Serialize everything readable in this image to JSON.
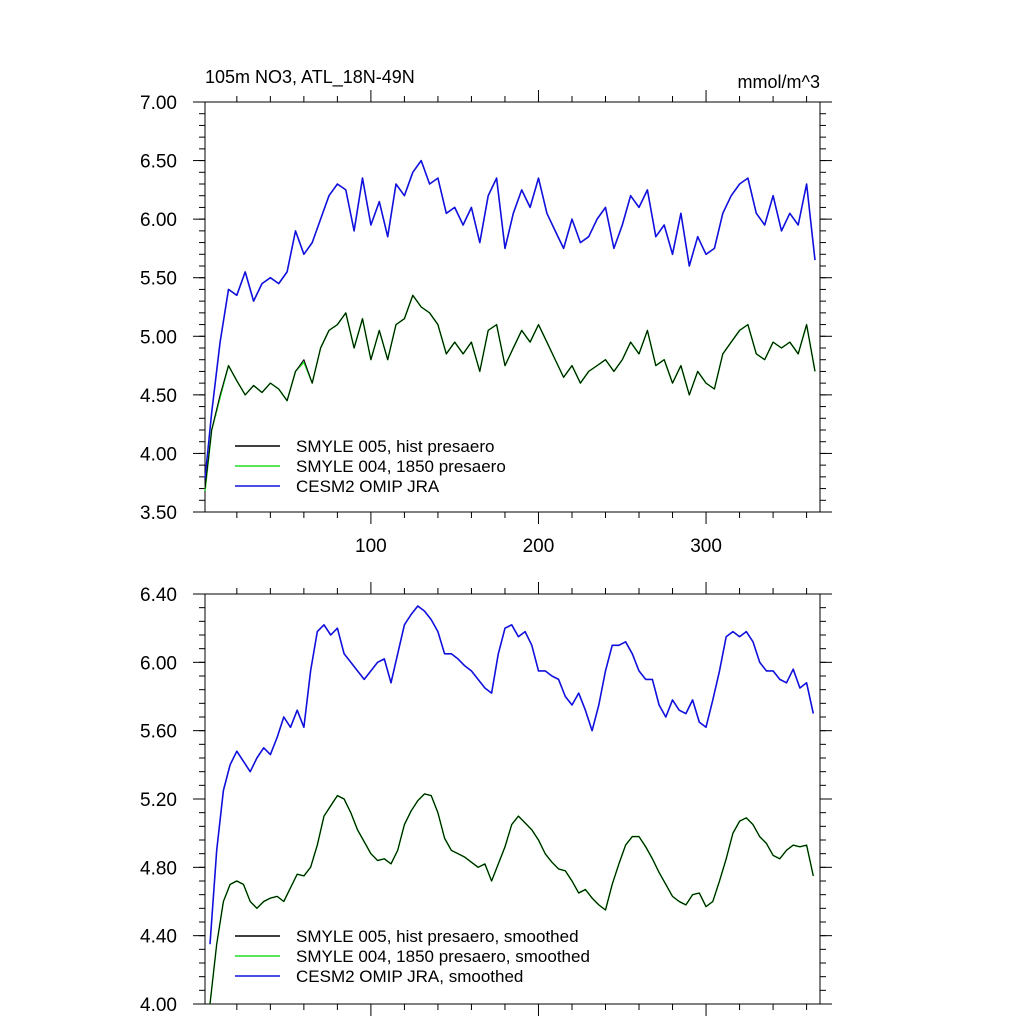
{
  "chart_data": [
    {
      "type": "line",
      "title": "105m NO3, ATL_18N-49N",
      "units": "mmol/m^3",
      "xlabel": "",
      "ylabel": "",
      "xlim": [
        1,
        368
      ],
      "ylim": [
        3.5,
        7.0
      ],
      "x_ticks": [
        "100",
        "200",
        "300"
      ],
      "y_ticks": [
        "3.50",
        "4.00",
        "4.50",
        "5.00",
        "5.50",
        "6.00",
        "6.50",
        "7.00"
      ],
      "legend_position": "bottom-left",
      "series": [
        {
          "name": "SMYLE 005, hist presaero",
          "color": "#000000",
          "x": [
            1,
            5,
            10,
            15,
            20,
            25,
            30,
            35,
            40,
            45,
            50,
            55,
            60,
            65,
            70,
            75,
            80,
            85,
            90,
            95,
            100,
            105,
            110,
            115,
            120,
            125,
            130,
            135,
            140,
            145,
            150,
            155,
            160,
            165,
            170,
            175,
            180,
            185,
            190,
            195,
            200,
            205,
            210,
            215,
            220,
            225,
            230,
            235,
            240,
            245,
            250,
            255,
            260,
            265,
            270,
            275,
            280,
            285,
            290,
            295,
            300,
            305,
            310,
            315,
            320,
            325,
            330,
            335,
            340,
            345,
            350,
            355,
            360,
            365
          ],
          "values": [
            3.7,
            4.2,
            4.5,
            4.75,
            4.62,
            4.5,
            4.58,
            4.52,
            4.6,
            4.55,
            4.45,
            4.7,
            4.8,
            4.6,
            4.9,
            5.05,
            5.1,
            5.2,
            4.9,
            5.15,
            4.8,
            5.05,
            4.8,
            5.1,
            5.15,
            5.35,
            5.25,
            5.2,
            5.1,
            4.85,
            4.95,
            4.85,
            4.95,
            4.7,
            5.05,
            5.1,
            4.75,
            4.9,
            5.05,
            4.95,
            5.1,
            4.95,
            4.8,
            4.65,
            4.75,
            4.6,
            4.7,
            4.75,
            4.8,
            4.7,
            4.8,
            4.95,
            4.85,
            5.05,
            4.75,
            4.8,
            4.6,
            4.75,
            4.5,
            4.7,
            4.6,
            4.55,
            4.85,
            4.95,
            5.05,
            5.1,
            4.85,
            4.8,
            4.95,
            4.9,
            4.95,
            4.85,
            5.1,
            4.7
          ]
        },
        {
          "name": "SMYLE 004, 1850 presaero",
          "color": "#22dd22",
          "x": [
            1,
            5,
            10,
            15,
            20,
            25,
            30,
            35,
            40,
            45,
            50,
            55,
            60,
            65,
            70,
            75,
            80,
            85,
            90,
            95,
            100,
            105,
            110,
            115,
            120,
            125,
            130,
            135,
            140,
            145,
            150,
            155,
            160,
            165,
            170,
            175,
            180,
            185,
            190,
            195,
            200,
            205,
            210,
            215,
            220,
            225,
            230,
            235,
            240,
            245,
            250,
            255,
            260,
            265,
            270,
            275,
            280,
            285,
            290,
            295,
            300,
            305,
            310,
            315,
            320,
            325,
            330,
            335,
            340,
            345,
            350,
            355,
            360,
            365
          ],
          "values": [
            3.68,
            4.2,
            4.48,
            4.75,
            4.62,
            4.5,
            4.58,
            4.52,
            4.6,
            4.55,
            4.45,
            4.7,
            4.78,
            4.6,
            4.9,
            5.05,
            5.1,
            5.2,
            4.9,
            5.15,
            4.8,
            5.05,
            4.8,
            5.1,
            5.15,
            5.35,
            5.25,
            5.2,
            5.1,
            4.85,
            4.95,
            4.85,
            4.95,
            4.7,
            5.05,
            5.1,
            4.75,
            4.9,
            5.05,
            4.95,
            5.1,
            4.95,
            4.8,
            4.65,
            4.75,
            4.6,
            4.7,
            4.75,
            4.8,
            4.7,
            4.8,
            4.95,
            4.85,
            5.05,
            4.75,
            4.8,
            4.6,
            4.75,
            4.5,
            4.7,
            4.6,
            4.55,
            4.85,
            4.95,
            5.05,
            5.1,
            4.85,
            4.8,
            4.95,
            4.9,
            4.95,
            4.85,
            5.1,
            4.7
          ]
        },
        {
          "name": "CESM2 OMIP JRA",
          "color": "#1010dd",
          "x": [
            1,
            5,
            10,
            15,
            20,
            25,
            30,
            35,
            40,
            45,
            50,
            55,
            60,
            65,
            70,
            75,
            80,
            85,
            90,
            95,
            100,
            105,
            110,
            115,
            120,
            125,
            130,
            135,
            140,
            145,
            150,
            155,
            160,
            165,
            170,
            175,
            180,
            185,
            190,
            195,
            200,
            205,
            210,
            215,
            220,
            225,
            230,
            235,
            240,
            245,
            250,
            255,
            260,
            265,
            270,
            275,
            280,
            285,
            290,
            295,
            300,
            305,
            310,
            315,
            320,
            325,
            330,
            335,
            340,
            345,
            350,
            355,
            360,
            365
          ],
          "values": [
            3.78,
            4.35,
            4.95,
            5.4,
            5.35,
            5.55,
            5.3,
            5.45,
            5.5,
            5.45,
            5.55,
            5.9,
            5.7,
            5.8,
            6.0,
            6.2,
            6.3,
            6.25,
            5.9,
            6.35,
            5.95,
            6.15,
            5.85,
            6.3,
            6.2,
            6.4,
            6.5,
            6.3,
            6.35,
            6.05,
            6.1,
            5.95,
            6.1,
            5.8,
            6.2,
            6.35,
            5.75,
            6.05,
            6.25,
            6.1,
            6.35,
            6.05,
            5.9,
            5.75,
            6.0,
            5.8,
            5.85,
            6.0,
            6.1,
            5.75,
            5.95,
            6.2,
            6.1,
            6.25,
            5.85,
            5.95,
            5.7,
            6.05,
            5.6,
            5.85,
            5.7,
            5.75,
            6.05,
            6.2,
            6.3,
            6.35,
            6.05,
            5.95,
            6.2,
            5.9,
            6.05,
            5.95,
            6.3,
            5.65
          ]
        }
      ]
    },
    {
      "type": "line",
      "title": "",
      "xlabel": "",
      "ylabel": "",
      "xlim": [
        1,
        368
      ],
      "ylim": [
        4.0,
        6.4
      ],
      "y_ticks": [
        "4.00",
        "4.40",
        "4.80",
        "5.20",
        "5.60",
        "6.00",
        "6.40"
      ],
      "legend_position": "bottom-left",
      "series": [
        {
          "name": "SMYLE 005, hist presaero, smoothed",
          "color": "#000000",
          "x": [
            4,
            8,
            12,
            16,
            20,
            24,
            28,
            32,
            36,
            40,
            44,
            48,
            52,
            56,
            60,
            64,
            68,
            72,
            76,
            80,
            84,
            88,
            92,
            96,
            100,
            104,
            108,
            112,
            116,
            120,
            124,
            128,
            132,
            136,
            140,
            144,
            148,
            152,
            156,
            160,
            164,
            168,
            172,
            176,
            180,
            184,
            188,
            192,
            196,
            200,
            204,
            208,
            212,
            216,
            220,
            224,
            228,
            232,
            236,
            240,
            244,
            248,
            252,
            256,
            260,
            264,
            268,
            272,
            276,
            280,
            284,
            288,
            292,
            296,
            300,
            304,
            308,
            312,
            316,
            320,
            324,
            328,
            332,
            336,
            340,
            344,
            348,
            352,
            356,
            360,
            364
          ],
          "values": [
            4.0,
            4.35,
            4.6,
            4.7,
            4.72,
            4.7,
            4.6,
            4.56,
            4.6,
            4.62,
            4.63,
            4.6,
            4.68,
            4.76,
            4.75,
            4.8,
            4.93,
            5.1,
            5.16,
            5.22,
            5.2,
            5.12,
            5.02,
            4.95,
            4.88,
            4.84,
            4.85,
            4.82,
            4.9,
            5.05,
            5.13,
            5.19,
            5.23,
            5.22,
            5.12,
            4.97,
            4.9,
            4.88,
            4.86,
            4.83,
            4.8,
            4.82,
            4.72,
            4.82,
            4.92,
            5.05,
            5.1,
            5.06,
            5.02,
            4.96,
            4.88,
            4.83,
            4.79,
            4.78,
            4.72,
            4.65,
            4.67,
            4.62,
            4.58,
            4.55,
            4.7,
            4.82,
            4.93,
            4.98,
            4.98,
            4.92,
            4.85,
            4.77,
            4.7,
            4.63,
            4.6,
            4.58,
            4.64,
            4.65,
            4.57,
            4.6,
            4.72,
            4.85,
            5.0,
            5.07,
            5.09,
            5.05,
            4.98,
            4.94,
            4.87,
            4.85,
            4.9,
            4.93,
            4.92,
            4.93,
            4.75
          ]
        },
        {
          "name": "SMYLE 004, 1850 presaero, smoothed",
          "color": "#22dd22",
          "x": [
            4,
            8,
            12,
            16,
            20,
            24,
            28,
            32,
            36,
            40,
            44,
            48,
            52,
            56,
            60,
            64,
            68,
            72,
            76,
            80,
            84,
            88,
            92,
            96,
            100,
            104,
            108,
            112,
            116,
            120,
            124,
            128,
            132,
            136,
            140,
            144,
            148,
            152,
            156,
            160,
            164,
            168,
            172,
            176,
            180,
            184,
            188,
            192,
            196,
            200,
            204,
            208,
            212,
            216,
            220,
            224,
            228,
            232,
            236,
            240,
            244,
            248,
            252,
            256,
            260,
            264,
            268,
            272,
            276,
            280,
            284,
            288,
            292,
            296,
            300,
            304,
            308,
            312,
            316,
            320,
            324,
            328,
            332,
            336,
            340,
            344,
            348,
            352,
            356,
            360,
            364
          ],
          "values": [
            4.0,
            4.35,
            4.6,
            4.7,
            4.72,
            4.7,
            4.6,
            4.56,
            4.6,
            4.62,
            4.63,
            4.6,
            4.68,
            4.76,
            4.75,
            4.8,
            4.93,
            5.1,
            5.16,
            5.22,
            5.2,
            5.12,
            5.02,
            4.95,
            4.88,
            4.84,
            4.85,
            4.82,
            4.9,
            5.05,
            5.13,
            5.19,
            5.23,
            5.22,
            5.12,
            4.97,
            4.9,
            4.88,
            4.86,
            4.83,
            4.8,
            4.82,
            4.72,
            4.82,
            4.92,
            5.05,
            5.1,
            5.06,
            5.02,
            4.96,
            4.88,
            4.83,
            4.79,
            4.78,
            4.72,
            4.65,
            4.67,
            4.62,
            4.58,
            4.55,
            4.7,
            4.82,
            4.93,
            4.98,
            4.98,
            4.92,
            4.85,
            4.77,
            4.7,
            4.63,
            4.6,
            4.58,
            4.64,
            4.65,
            4.57,
            4.6,
            4.72,
            4.85,
            5.0,
            5.07,
            5.09,
            5.05,
            4.98,
            4.94,
            4.87,
            4.85,
            4.9,
            4.93,
            4.92,
            4.93,
            4.75
          ]
        },
        {
          "name": "CESM2 OMIP JRA, smoothed",
          "color": "#1010dd",
          "x": [
            4,
            8,
            12,
            16,
            20,
            24,
            28,
            32,
            36,
            40,
            44,
            48,
            52,
            56,
            60,
            64,
            68,
            72,
            76,
            80,
            84,
            88,
            92,
            96,
            100,
            104,
            108,
            112,
            116,
            120,
            124,
            128,
            132,
            136,
            140,
            144,
            148,
            152,
            156,
            160,
            164,
            168,
            172,
            176,
            180,
            184,
            188,
            192,
            196,
            200,
            204,
            208,
            212,
            216,
            220,
            224,
            228,
            232,
            236,
            240,
            244,
            248,
            252,
            256,
            260,
            264,
            268,
            272,
            276,
            280,
            284,
            288,
            292,
            296,
            300,
            304,
            308,
            312,
            316,
            320,
            324,
            328,
            332,
            336,
            340,
            344,
            348,
            352,
            356,
            360,
            364
          ],
          "values": [
            4.35,
            4.9,
            5.25,
            5.4,
            5.48,
            5.42,
            5.36,
            5.44,
            5.5,
            5.46,
            5.56,
            5.68,
            5.62,
            5.72,
            5.62,
            5.95,
            6.18,
            6.22,
            6.16,
            6.2,
            6.05,
            6.0,
            5.95,
            5.9,
            5.95,
            6.0,
            6.02,
            5.88,
            6.05,
            6.22,
            6.28,
            6.33,
            6.3,
            6.25,
            6.18,
            6.05,
            6.05,
            6.02,
            5.98,
            5.95,
            5.9,
            5.85,
            5.82,
            6.05,
            6.2,
            6.22,
            6.15,
            6.18,
            6.1,
            5.95,
            5.95,
            5.92,
            5.9,
            5.8,
            5.75,
            5.82,
            5.72,
            5.6,
            5.75,
            5.95,
            6.1,
            6.1,
            6.12,
            6.05,
            5.95,
            5.9,
            5.9,
            5.75,
            5.68,
            5.78,
            5.72,
            5.7,
            5.78,
            5.65,
            5.62,
            5.78,
            5.95,
            6.15,
            6.18,
            6.15,
            6.18,
            6.12,
            6.0,
            5.95,
            5.95,
            5.9,
            5.88,
            5.96,
            5.85,
            5.88,
            5.7
          ]
        }
      ]
    }
  ]
}
